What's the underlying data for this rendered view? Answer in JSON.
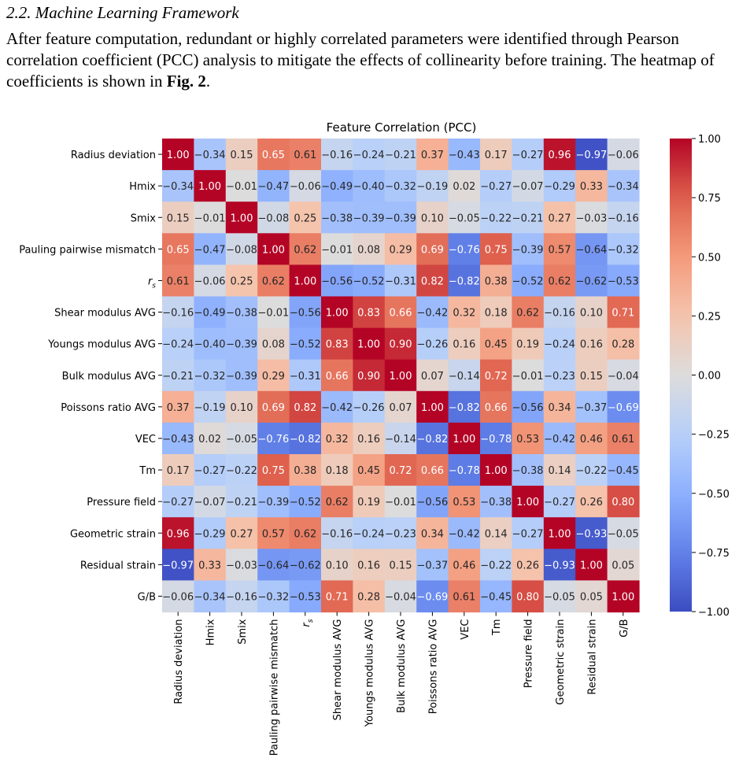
{
  "section": {
    "title": "2.2. Machine Learning Framework",
    "paragraph_before": "After feature computation, redundant or highly correlated parameters were identified through Pearson correlation coefficient (PCC) analysis to mitigate the effects of collinearity before training. The heatmap of coefficients is shown in ",
    "figure_ref": "Fig. 2",
    "paragraph_after": "."
  },
  "chart_data": {
    "type": "heatmap",
    "title": "Feature Correlation (PCC)",
    "labels": [
      "Radius deviation",
      "Hmix",
      "Smix",
      "Pauling pairwise mismatch",
      "r_s",
      "Shear modulus AVG",
      "Youngs modulus AVG",
      "Bulk modulus AVG",
      "Poissons ratio AVG",
      "VEC",
      "Tm",
      "Pressure field",
      "Geometric strain",
      "Residual strain",
      "G/B"
    ],
    "matrix": [
      [
        1.0,
        -0.34,
        0.15,
        0.65,
        0.61,
        -0.16,
        -0.24,
        -0.21,
        0.37,
        -0.43,
        0.17,
        -0.27,
        0.96,
        -0.97,
        -0.06
      ],
      [
        -0.34,
        1.0,
        -0.01,
        -0.47,
        -0.06,
        -0.49,
        -0.4,
        -0.32,
        -0.19,
        0.02,
        -0.27,
        -0.07,
        -0.29,
        0.33,
        -0.34
      ],
      [
        0.15,
        -0.01,
        1.0,
        -0.08,
        0.25,
        -0.38,
        -0.39,
        -0.39,
        0.1,
        -0.05,
        -0.22,
        -0.21,
        0.27,
        -0.03,
        -0.16
      ],
      [
        0.65,
        -0.47,
        -0.08,
        1.0,
        0.62,
        -0.01,
        0.08,
        0.29,
        0.69,
        -0.76,
        0.75,
        -0.39,
        0.57,
        -0.64,
        -0.32
      ],
      [
        0.61,
        -0.06,
        0.25,
        0.62,
        1.0,
        -0.56,
        -0.52,
        -0.31,
        0.82,
        -0.82,
        0.38,
        -0.52,
        0.62,
        -0.62,
        -0.53
      ],
      [
        -0.16,
        -0.49,
        -0.38,
        -0.01,
        -0.56,
        1.0,
        0.83,
        0.66,
        -0.42,
        0.32,
        0.18,
        0.62,
        -0.16,
        0.1,
        0.71
      ],
      [
        -0.24,
        -0.4,
        -0.39,
        0.08,
        -0.52,
        0.83,
        1.0,
        0.9,
        -0.26,
        0.16,
        0.45,
        0.19,
        -0.24,
        0.16,
        0.28
      ],
      [
        -0.21,
        -0.32,
        -0.39,
        0.29,
        -0.31,
        0.66,
        0.9,
        1.0,
        0.07,
        -0.14,
        0.72,
        -0.01,
        -0.23,
        0.15,
        -0.04
      ],
      [
        0.37,
        -0.19,
        0.1,
        0.69,
        0.82,
        -0.42,
        -0.26,
        0.07,
        1.0,
        -0.82,
        0.66,
        -0.56,
        0.34,
        -0.37,
        -0.69
      ],
      [
        -0.43,
        0.02,
        -0.05,
        -0.76,
        -0.82,
        0.32,
        0.16,
        -0.14,
        -0.82,
        1.0,
        -0.78,
        0.53,
        -0.42,
        0.46,
        0.61
      ],
      [
        0.17,
        -0.27,
        -0.22,
        0.75,
        0.38,
        0.18,
        0.45,
        0.72,
        0.66,
        -0.78,
        1.0,
        -0.38,
        0.14,
        -0.22,
        -0.45
      ],
      [
        -0.27,
        -0.07,
        -0.21,
        -0.39,
        -0.52,
        0.62,
        0.19,
        -0.01,
        -0.56,
        0.53,
        -0.38,
        1.0,
        -0.27,
        0.26,
        0.8
      ],
      [
        0.96,
        -0.29,
        0.27,
        0.57,
        0.62,
        -0.16,
        -0.24,
        -0.23,
        0.34,
        -0.42,
        0.14,
        -0.27,
        1.0,
        -0.93,
        -0.05
      ],
      [
        -0.97,
        0.33,
        -0.03,
        -0.64,
        -0.62,
        0.1,
        0.16,
        0.15,
        -0.37,
        0.46,
        -0.22,
        0.26,
        -0.93,
        1.0,
        0.05
      ],
      [
        -0.06,
        -0.34,
        -0.16,
        -0.32,
        -0.53,
        0.71,
        0.28,
        -0.04,
        -0.69,
        0.61,
        -0.45,
        0.8,
        -0.05,
        0.05,
        1.0
      ]
    ],
    "colorbar": {
      "min": -1.0,
      "max": 1.0,
      "ticks": [
        "1.00",
        "0.75",
        "0.50",
        "0.25",
        "0.00",
        "−0.25",
        "−0.50",
        "−0.75",
        "−1.00"
      ],
      "colormap": "coolwarm"
    }
  }
}
